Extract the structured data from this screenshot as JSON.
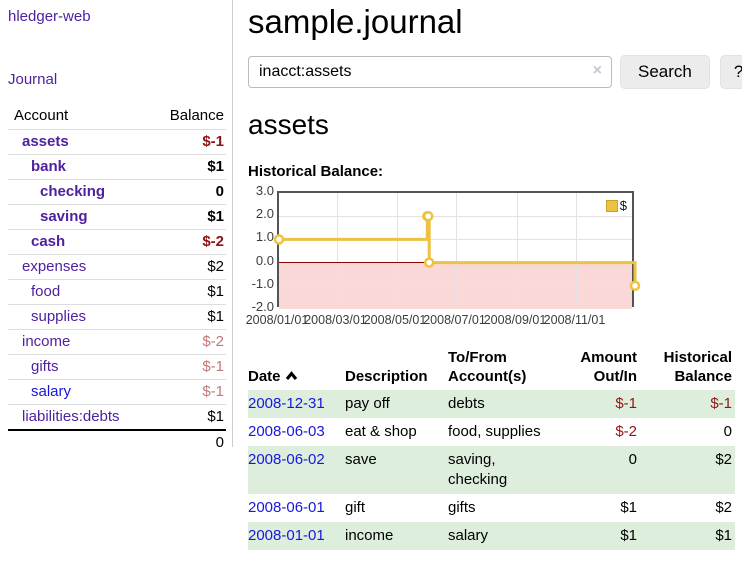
{
  "sidebar": {
    "brand": "hledger-web",
    "journal_label": "Journal",
    "accounts": {
      "header_account": "Account",
      "header_balance": "Balance",
      "rows": [
        {
          "account": "assets",
          "depth": 1,
          "bold": true,
          "balance": "$-1",
          "negative": true,
          "unvisited": false
        },
        {
          "account": "bank",
          "depth": 2,
          "bold": true,
          "balance": "$1",
          "negative": false,
          "unvisited": false
        },
        {
          "account": "checking",
          "depth": 3,
          "bold": true,
          "balance": "0",
          "negative": false,
          "unvisited": false
        },
        {
          "account": "saving",
          "depth": 3,
          "bold": true,
          "balance": "$1",
          "negative": false,
          "unvisited": false
        },
        {
          "account": "cash",
          "depth": 2,
          "bold": true,
          "balance": "$-2",
          "negative": true,
          "unvisited": false
        },
        {
          "account": "expenses",
          "depth": 1,
          "bold": false,
          "balance": "$2",
          "negative": false,
          "unvisited": false
        },
        {
          "account": "food",
          "depth": 2,
          "bold": false,
          "balance": "$1",
          "negative": false,
          "unvisited": false
        },
        {
          "account": "supplies",
          "depth": 2,
          "bold": false,
          "balance": "$1",
          "negative": false,
          "unvisited": false
        },
        {
          "account": "income",
          "depth": 1,
          "bold": false,
          "balance": "$-2",
          "negative": true,
          "unvisited": false
        },
        {
          "account": "gifts",
          "depth": 2,
          "bold": false,
          "balance": "$-1",
          "negative": true,
          "unvisited": false
        },
        {
          "account": "salary",
          "depth": 2,
          "bold": false,
          "balance": "$-1",
          "negative": true,
          "unvisited": true
        },
        {
          "account": "liabilities:debts",
          "depth": 1,
          "bold": false,
          "balance": "$1",
          "negative": false,
          "unvisited": false
        }
      ],
      "total": "0"
    }
  },
  "main": {
    "title": "sample.journal",
    "account_heading": "assets",
    "chart_label": "Historical Balance:"
  },
  "search": {
    "value": "inacct:assets",
    "clear_icon": "×",
    "button_label": "Search",
    "help_label": "?"
  },
  "chart_data": {
    "type": "line",
    "step": true,
    "title": "Historical Balance:",
    "x_type": "date",
    "xlim": [
      "2008-01-01",
      "2009-01-01"
    ],
    "ylim": [
      -2,
      3
    ],
    "ytick_values": [
      3,
      2,
      1,
      0,
      -1,
      -2
    ],
    "ytick_labels": [
      "3.0",
      "2.0",
      "1.0",
      "0.0",
      "-1.0",
      "-2.0"
    ],
    "xtick_values": [
      "2008-01-01",
      "2008-03-01",
      "2008-05-01",
      "2008-07-01",
      "2008-09-01",
      "2008-11-01"
    ],
    "xtick_labels": [
      "2008/01/01",
      "2008/03/01",
      "2008/05/01",
      "2008/07/01",
      "2008/09/01",
      "2008/11/01"
    ],
    "series": [
      {
        "name": "$",
        "color": "#edc240",
        "points": [
          [
            "2008-01-01",
            1
          ],
          [
            "2008-06-01",
            2
          ],
          [
            "2008-06-02",
            2
          ],
          [
            "2008-06-03",
            0
          ],
          [
            "2008-12-31",
            -1
          ]
        ]
      }
    ],
    "grid": true,
    "legend_position": "top-right",
    "zero_line_color": "#8b0000",
    "negative_region_color": "#fbd8d8"
  },
  "register": {
    "headers": [
      {
        "text": "Date",
        "align": "left",
        "sort": true
      },
      {
        "text": "Description",
        "align": "left",
        "sort": false
      },
      {
        "text": "To/From\nAccount(s)",
        "align": "left",
        "sort": false
      },
      {
        "text": "Amount\nOut/In",
        "align": "right",
        "sort": false
      },
      {
        "text": "Historical\nBalance",
        "align": "right",
        "sort": false
      }
    ],
    "rows": [
      {
        "date": "2008-12-31",
        "description": "pay off",
        "accounts": "debts",
        "amount": "$-1",
        "amount_neg": true,
        "balance": "$-1",
        "balance_neg": true
      },
      {
        "date": "2008-06-03",
        "description": "eat & shop",
        "accounts": "food, supplies",
        "amount": "$-2",
        "amount_neg": true,
        "balance": "0",
        "balance_neg": false
      },
      {
        "date": "2008-06-02",
        "description": "save",
        "accounts": "saving, checking",
        "amount": "0",
        "amount_neg": false,
        "balance": "$2",
        "balance_neg": false
      },
      {
        "date": "2008-06-01",
        "description": "gift",
        "accounts": "gifts",
        "amount": "$1",
        "amount_neg": false,
        "balance": "$2",
        "balance_neg": false
      },
      {
        "date": "2008-01-01",
        "description": "income",
        "accounts": "salary",
        "amount": "$1",
        "amount_neg": false,
        "balance": "$1",
        "balance_neg": false
      }
    ]
  }
}
